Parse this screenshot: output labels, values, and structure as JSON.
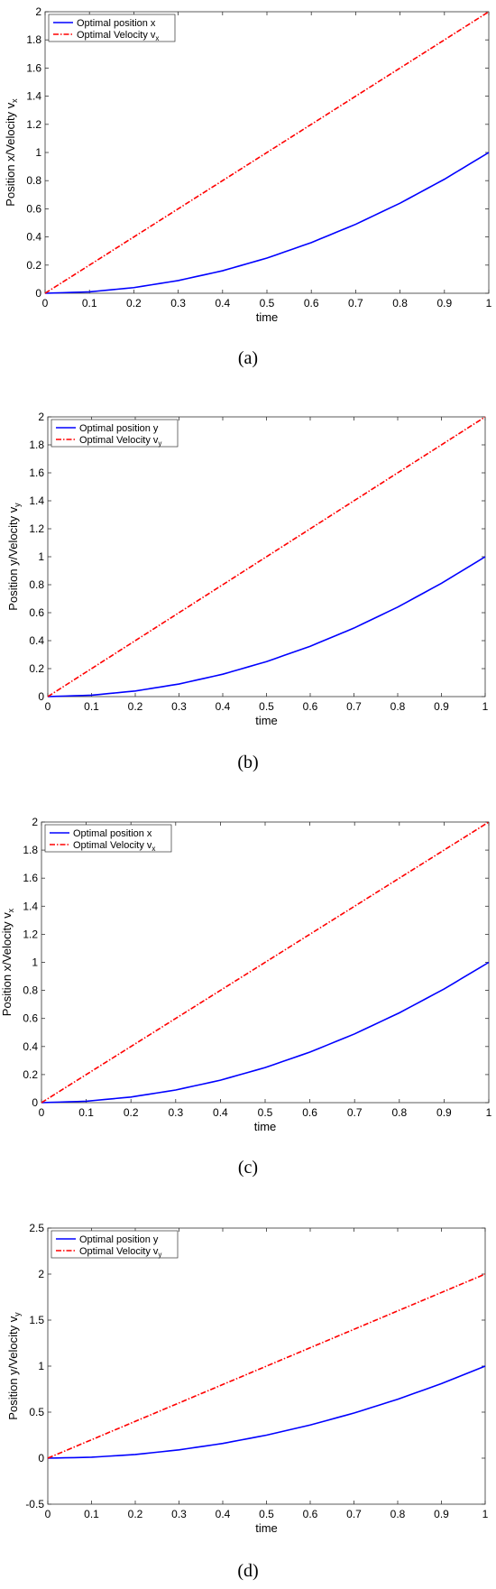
{
  "chart_data": [
    {
      "type": "line",
      "caption": "(a)",
      "xlabel": "time",
      "ylabel": "Position  x/Velocity  v",
      "ylabel_sub": "x",
      "xlim": [
        0,
        1
      ],
      "ylim": [
        0,
        2
      ],
      "xticks": [
        "0",
        "0.1",
        "0.2",
        "0.3",
        "0.4",
        "0.5",
        "0.6",
        "0.7",
        "0.8",
        "0.9",
        "1"
      ],
      "yticks": [
        "0",
        "0.2",
        "0.4",
        "0.6",
        "0.8",
        "1",
        "1.2",
        "1.4",
        "1.6",
        "1.8",
        "2"
      ],
      "grid": false,
      "legend_position": "top-left",
      "series": [
        {
          "name": "Optimal position x",
          "name_sub": "",
          "color": "#0000ff",
          "style": "solid",
          "x": [
            0,
            0.1,
            0.2,
            0.3,
            0.4,
            0.5,
            0.6,
            0.7,
            0.8,
            0.9,
            1
          ],
          "y": [
            0,
            0.01,
            0.04,
            0.09,
            0.16,
            0.25,
            0.36,
            0.49,
            0.64,
            0.81,
            1
          ]
        },
        {
          "name": "Optimal  Velocity  v",
          "name_sub": "x",
          "color": "#ff0000",
          "style": "dashdot",
          "x": [
            0,
            1
          ],
          "y": [
            0,
            2
          ]
        }
      ]
    },
    {
      "type": "line",
      "caption": "(b)",
      "xlabel": "time",
      "ylabel": "Position  y/Velocity  v",
      "ylabel_sub": "y",
      "xlim": [
        0,
        1
      ],
      "ylim": [
        0,
        2
      ],
      "xticks": [
        "0",
        "0.1",
        "0.2",
        "0.3",
        "0.4",
        "0.5",
        "0.6",
        "0.7",
        "0.8",
        "0.9",
        "1"
      ],
      "yticks": [
        "0",
        "0.2",
        "0.4",
        "0.6",
        "0.8",
        "1",
        "1.2",
        "1.4",
        "1.6",
        "1.8",
        "2"
      ],
      "grid": false,
      "legend_position": "top-left",
      "series": [
        {
          "name": "Optimal position y",
          "name_sub": "",
          "color": "#0000ff",
          "style": "solid",
          "x": [
            0,
            0.1,
            0.2,
            0.3,
            0.4,
            0.5,
            0.6,
            0.7,
            0.8,
            0.9,
            1
          ],
          "y": [
            0,
            0.01,
            0.04,
            0.09,
            0.16,
            0.25,
            0.36,
            0.49,
            0.64,
            0.81,
            1
          ]
        },
        {
          "name": "Optimal  Velocity  v",
          "name_sub": "y",
          "color": "#ff0000",
          "style": "dashdot",
          "x": [
            0,
            1
          ],
          "y": [
            0,
            2
          ]
        }
      ]
    },
    {
      "type": "line",
      "caption": "(c)",
      "xlabel": "time",
      "ylabel": "Position  x/Velocity  v",
      "ylabel_sub": "x",
      "xlim": [
        0,
        1
      ],
      "ylim": [
        0,
        2
      ],
      "xticks": [
        "0",
        "0.1",
        "0.2",
        "0.3",
        "0.4",
        "0.5",
        "0.6",
        "0.7",
        "0.8",
        "0.9",
        "1"
      ],
      "yticks": [
        "0",
        "0.2",
        "0.4",
        "0.6",
        "0.8",
        "1",
        "1.2",
        "1.4",
        "1.6",
        "1.8",
        "2"
      ],
      "grid": false,
      "legend_position": "top-left",
      "series": [
        {
          "name": "Optimal position x",
          "name_sub": "",
          "color": "#0000ff",
          "style": "solid",
          "x": [
            0,
            0.1,
            0.2,
            0.3,
            0.4,
            0.5,
            0.6,
            0.7,
            0.8,
            0.9,
            1
          ],
          "y": [
            0,
            0.01,
            0.04,
            0.09,
            0.16,
            0.25,
            0.36,
            0.49,
            0.64,
            0.81,
            1
          ]
        },
        {
          "name": "Optimal  Velocity  v",
          "name_sub": "x",
          "color": "#ff0000",
          "style": "dashdot",
          "x": [
            0,
            1
          ],
          "y": [
            0,
            2
          ]
        }
      ]
    },
    {
      "type": "line",
      "caption": "(d)",
      "xlabel": "time",
      "ylabel": "Position  y/Velocity  v",
      "ylabel_sub": "y",
      "xlim": [
        0,
        1
      ],
      "ylim": [
        -0.5,
        2.5
      ],
      "xticks": [
        "0",
        "0.1",
        "0.2",
        "0.3",
        "0.4",
        "0.5",
        "0.6",
        "0.7",
        "0.8",
        "0.9",
        "1"
      ],
      "yticks": [
        "-0.5",
        "0",
        "0.5",
        "1",
        "1.5",
        "2",
        "2.5"
      ],
      "grid": false,
      "legend_position": "top-left",
      "series": [
        {
          "name": "Optimal position y",
          "name_sub": "",
          "color": "#0000ff",
          "style": "solid",
          "x": [
            0,
            0.1,
            0.2,
            0.3,
            0.4,
            0.5,
            0.6,
            0.7,
            0.8,
            0.9,
            1
          ],
          "y": [
            0,
            0.01,
            0.04,
            0.09,
            0.16,
            0.25,
            0.36,
            0.49,
            0.64,
            0.81,
            1
          ]
        },
        {
          "name": "Optimal  Velocity  v",
          "name_sub": "y",
          "color": "#ff0000",
          "style": "dashdot",
          "x": [
            0,
            1
          ],
          "y": [
            0,
            2
          ]
        }
      ]
    }
  ]
}
